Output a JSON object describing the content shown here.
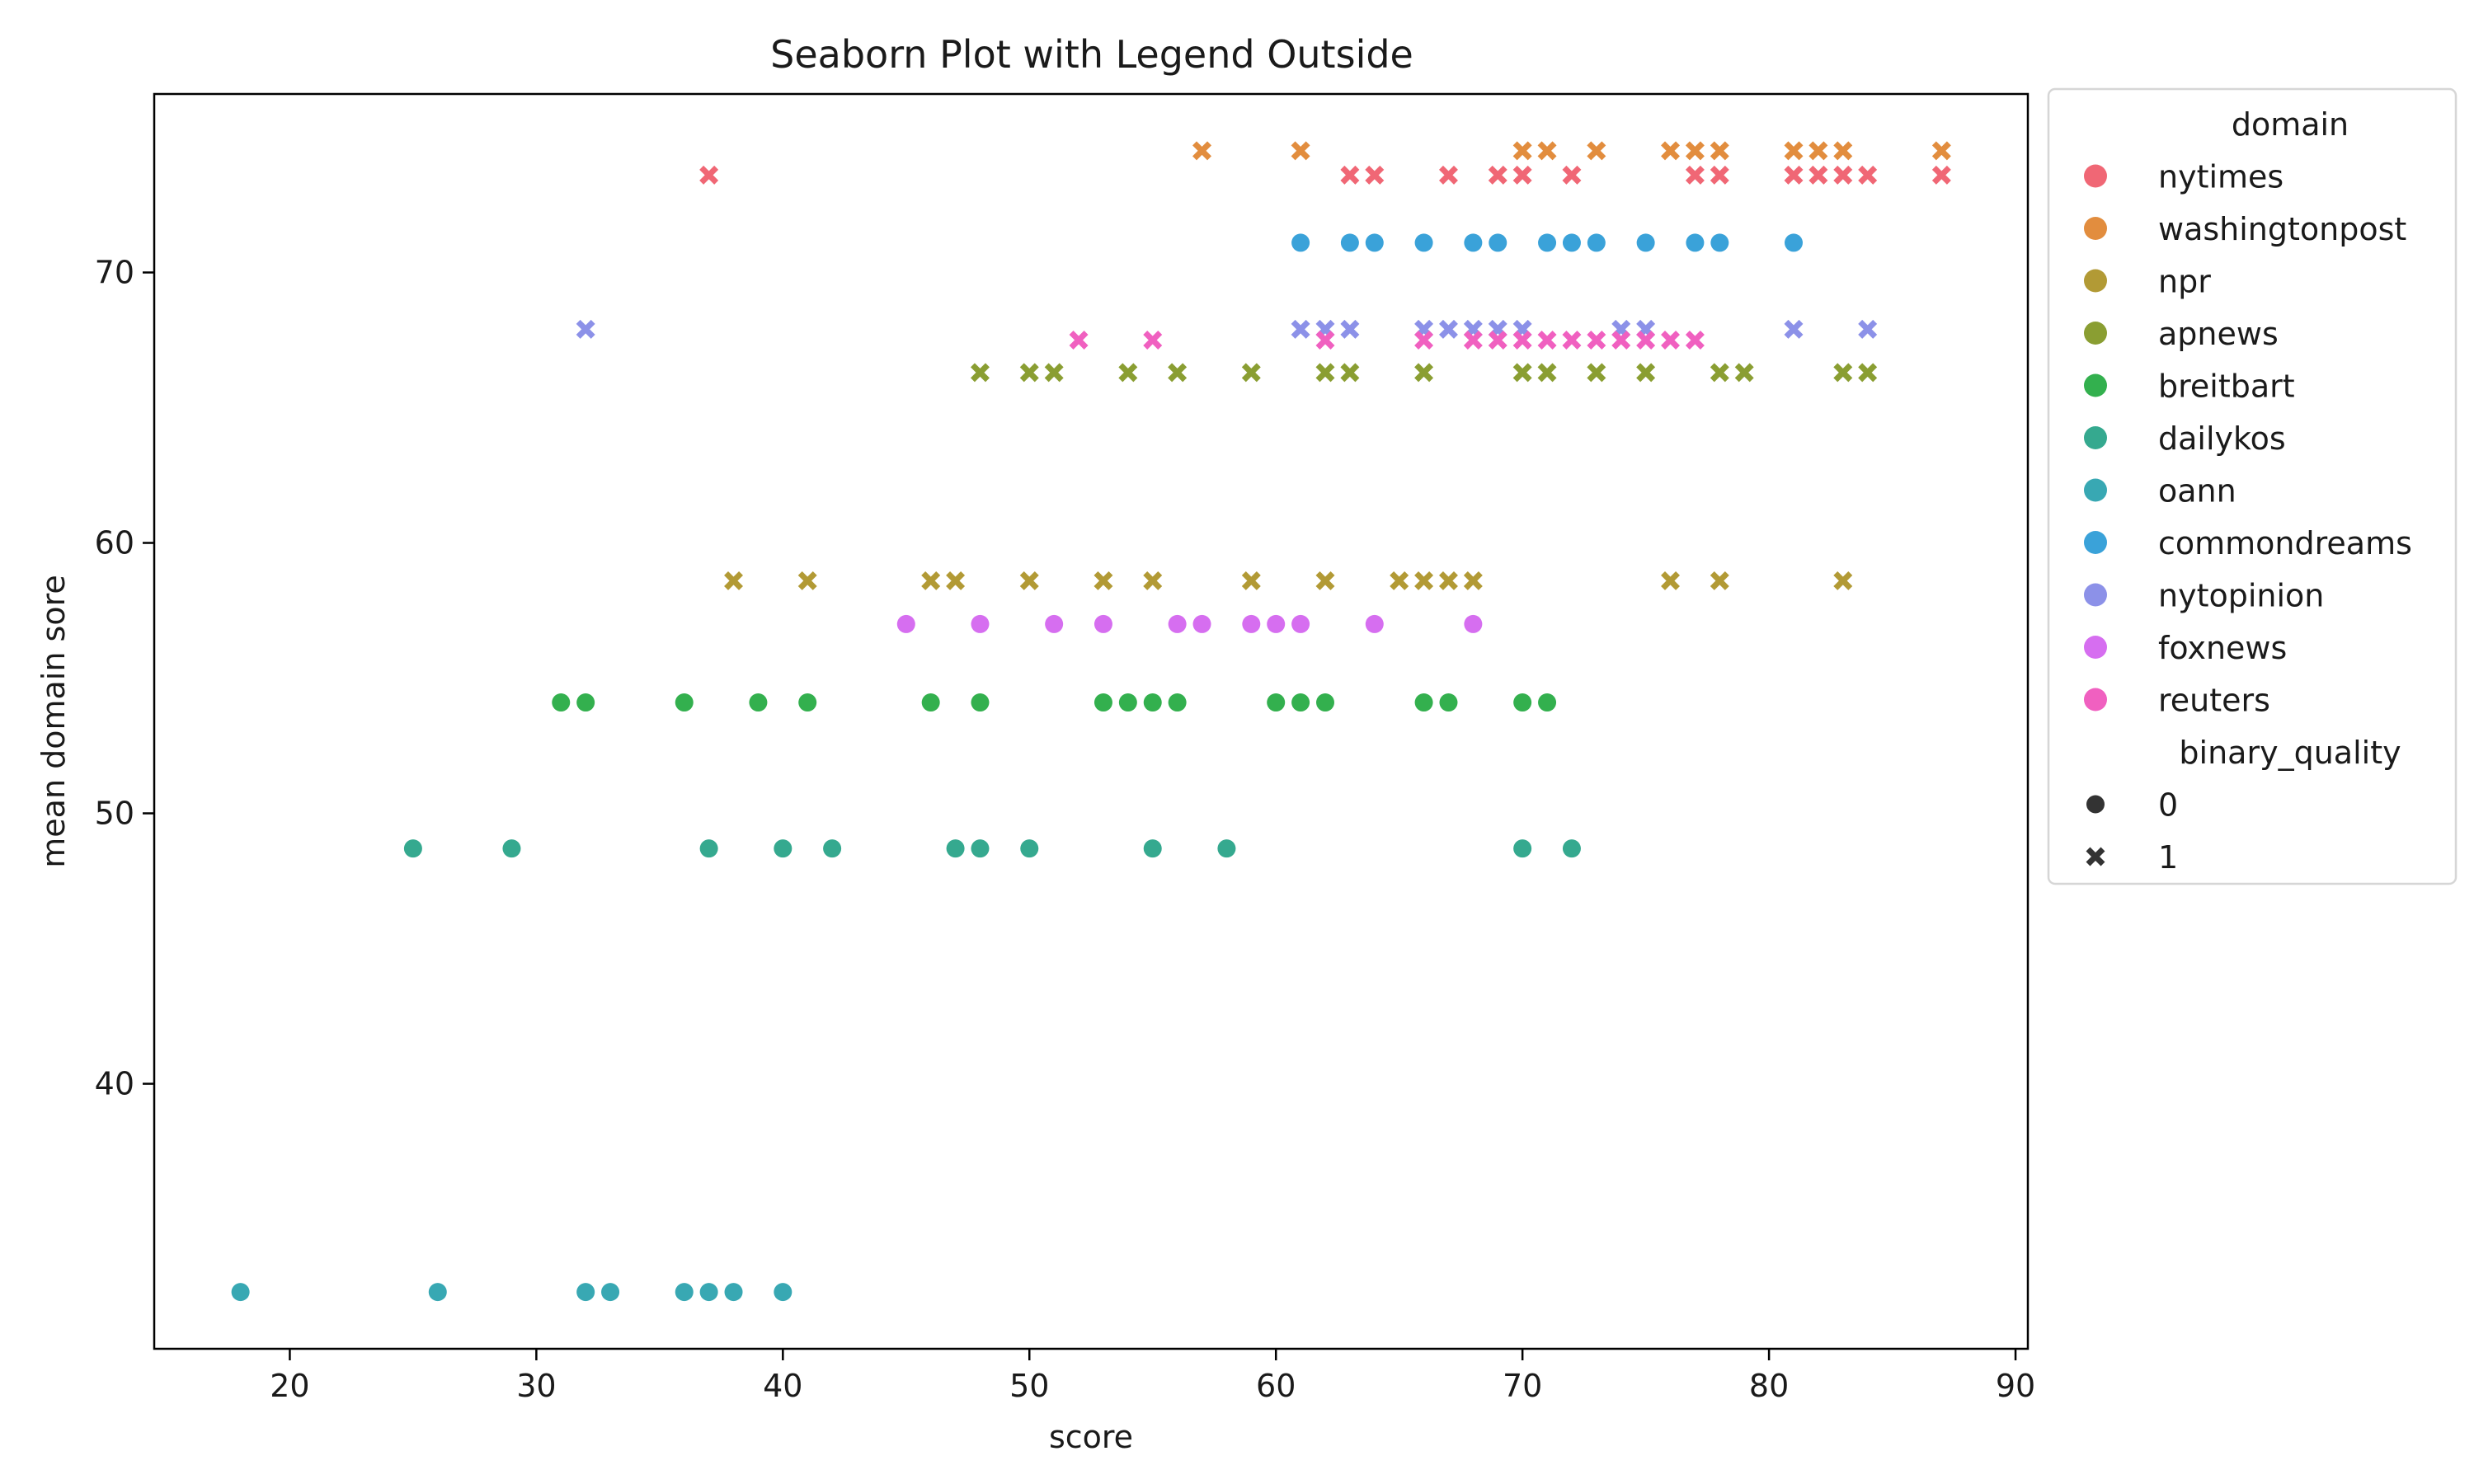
{
  "chart_data": {
    "type": "scatter",
    "title": "Seaborn Plot with Legend Outside",
    "xlabel": "score",
    "ylabel": "mean domain sore",
    "xlim": [
      14.5,
      90.5
    ],
    "ylim": [
      30.2,
      76.6
    ],
    "xticks": [
      20,
      30,
      40,
      50,
      60,
      70,
      80,
      90
    ],
    "yticks": [
      40,
      50,
      60,
      70
    ],
    "grid": false,
    "legend_placement": "outside-right",
    "hue_title": "domain",
    "style_title": "binary_quality",
    "style_legend": [
      {
        "label": "0",
        "marker": "circle"
      },
      {
        "label": "1",
        "marker": "x"
      }
    ],
    "series": [
      {
        "name": "nytimes",
        "color": "#f06775",
        "y": 73.6,
        "points": [
          [
            37,
            1
          ],
          [
            63,
            1
          ],
          [
            64,
            1
          ],
          [
            67,
            1
          ],
          [
            69,
            1
          ],
          [
            70,
            1
          ],
          [
            72,
            1
          ],
          [
            77,
            1
          ],
          [
            78,
            1
          ],
          [
            81,
            1
          ],
          [
            82,
            1
          ],
          [
            83,
            1
          ],
          [
            84,
            1
          ],
          [
            87,
            1
          ]
        ]
      },
      {
        "name": "washingtonpost",
        "color": "#e28d3e",
        "y": 74.5,
        "points": [
          [
            57,
            1
          ],
          [
            61,
            1
          ],
          [
            70,
            1
          ],
          [
            71,
            1
          ],
          [
            73,
            1
          ],
          [
            76,
            1
          ],
          [
            77,
            1
          ],
          [
            78,
            1
          ],
          [
            81,
            1
          ],
          [
            82,
            1
          ],
          [
            83,
            1
          ],
          [
            87,
            1
          ]
        ]
      },
      {
        "name": "npr",
        "color": "#b29a35",
        "y": 58.6,
        "points": [
          [
            38,
            1
          ],
          [
            41,
            1
          ],
          [
            46,
            1
          ],
          [
            47,
            1
          ],
          [
            50,
            1
          ],
          [
            53,
            1
          ],
          [
            55,
            1
          ],
          [
            59,
            1
          ],
          [
            62,
            1
          ],
          [
            65,
            1
          ],
          [
            66,
            1
          ],
          [
            67,
            1
          ],
          [
            68,
            1
          ],
          [
            76,
            1
          ],
          [
            78,
            1
          ],
          [
            83,
            1
          ]
        ]
      },
      {
        "name": "apnews",
        "color": "#8a9e32",
        "y": 66.3,
        "points": [
          [
            48,
            1
          ],
          [
            50,
            1
          ],
          [
            51,
            1
          ],
          [
            54,
            1
          ],
          [
            56,
            1
          ],
          [
            59,
            1
          ],
          [
            62,
            1
          ],
          [
            63,
            1
          ],
          [
            66,
            1
          ],
          [
            70,
            1
          ],
          [
            71,
            1
          ],
          [
            73,
            1
          ],
          [
            75,
            1
          ],
          [
            78,
            1
          ],
          [
            79,
            1
          ],
          [
            83,
            1
          ],
          [
            84,
            1
          ]
        ]
      },
      {
        "name": "breitbart",
        "color": "#33b04e",
        "y": 54.1,
        "points": [
          [
            31,
            0
          ],
          [
            32,
            0
          ],
          [
            36,
            0
          ],
          [
            39,
            0
          ],
          [
            41,
            0
          ],
          [
            46,
            0
          ],
          [
            48,
            0
          ],
          [
            53,
            0
          ],
          [
            54,
            0
          ],
          [
            55,
            0
          ],
          [
            56,
            0
          ],
          [
            60,
            0
          ],
          [
            61,
            0
          ],
          [
            62,
            0
          ],
          [
            66,
            0
          ],
          [
            67,
            0
          ],
          [
            70,
            0
          ],
          [
            71,
            0
          ]
        ]
      },
      {
        "name": "dailykos",
        "color": "#35a98f",
        "y": 48.7,
        "points": [
          [
            25,
            0
          ],
          [
            29,
            0
          ],
          [
            37,
            0
          ],
          [
            40,
            0
          ],
          [
            42,
            0
          ],
          [
            47,
            0
          ],
          [
            48,
            0
          ],
          [
            50,
            0
          ],
          [
            55,
            0
          ],
          [
            58,
            0
          ],
          [
            70,
            0
          ],
          [
            72,
            0
          ]
        ]
      },
      {
        "name": "oann",
        "color": "#38a8b3",
        "y": 32.3,
        "points": [
          [
            18,
            0
          ],
          [
            26,
            0
          ],
          [
            32,
            0
          ],
          [
            33,
            0
          ],
          [
            36,
            0
          ],
          [
            37,
            0
          ],
          [
            38,
            0
          ],
          [
            40,
            0
          ]
        ]
      },
      {
        "name": "commondreams",
        "color": "#3aa2d9",
        "y": 71.1,
        "points": [
          [
            61,
            0
          ],
          [
            63,
            0
          ],
          [
            64,
            0
          ],
          [
            66,
            0
          ],
          [
            68,
            0
          ],
          [
            69,
            0
          ],
          [
            71,
            0
          ],
          [
            72,
            0
          ],
          [
            73,
            0
          ],
          [
            75,
            0
          ],
          [
            77,
            0
          ],
          [
            78,
            0
          ],
          [
            81,
            0
          ]
        ]
      },
      {
        "name": "nytopinion",
        "color": "#8c91e8",
        "y": 67.9,
        "points": [
          [
            32,
            1
          ],
          [
            61,
            1
          ],
          [
            62,
            1
          ],
          [
            63,
            1
          ],
          [
            66,
            1
          ],
          [
            67,
            1
          ],
          [
            68,
            1
          ],
          [
            69,
            1
          ],
          [
            70,
            1
          ],
          [
            74,
            1
          ],
          [
            75,
            1
          ],
          [
            81,
            1
          ],
          [
            84,
            1
          ]
        ]
      },
      {
        "name": "foxnews",
        "color": "#d66ef0",
        "y": 57.0,
        "points": [
          [
            45,
            0
          ],
          [
            48,
            0
          ],
          [
            51,
            0
          ],
          [
            53,
            0
          ],
          [
            56,
            0
          ],
          [
            57,
            0
          ],
          [
            59,
            0
          ],
          [
            60,
            0
          ],
          [
            61,
            0
          ],
          [
            64,
            0
          ],
          [
            68,
            0
          ]
        ]
      },
      {
        "name": "reuters",
        "color": "#f060c0",
        "y": 67.5,
        "points": [
          [
            52,
            1
          ],
          [
            55,
            1
          ],
          [
            62,
            1
          ],
          [
            66,
            1
          ],
          [
            68,
            1
          ],
          [
            69,
            1
          ],
          [
            70,
            1
          ],
          [
            71,
            1
          ],
          [
            72,
            1
          ],
          [
            73,
            1
          ],
          [
            74,
            1
          ],
          [
            75,
            1
          ],
          [
            76,
            1
          ],
          [
            77,
            1
          ]
        ]
      }
    ]
  }
}
